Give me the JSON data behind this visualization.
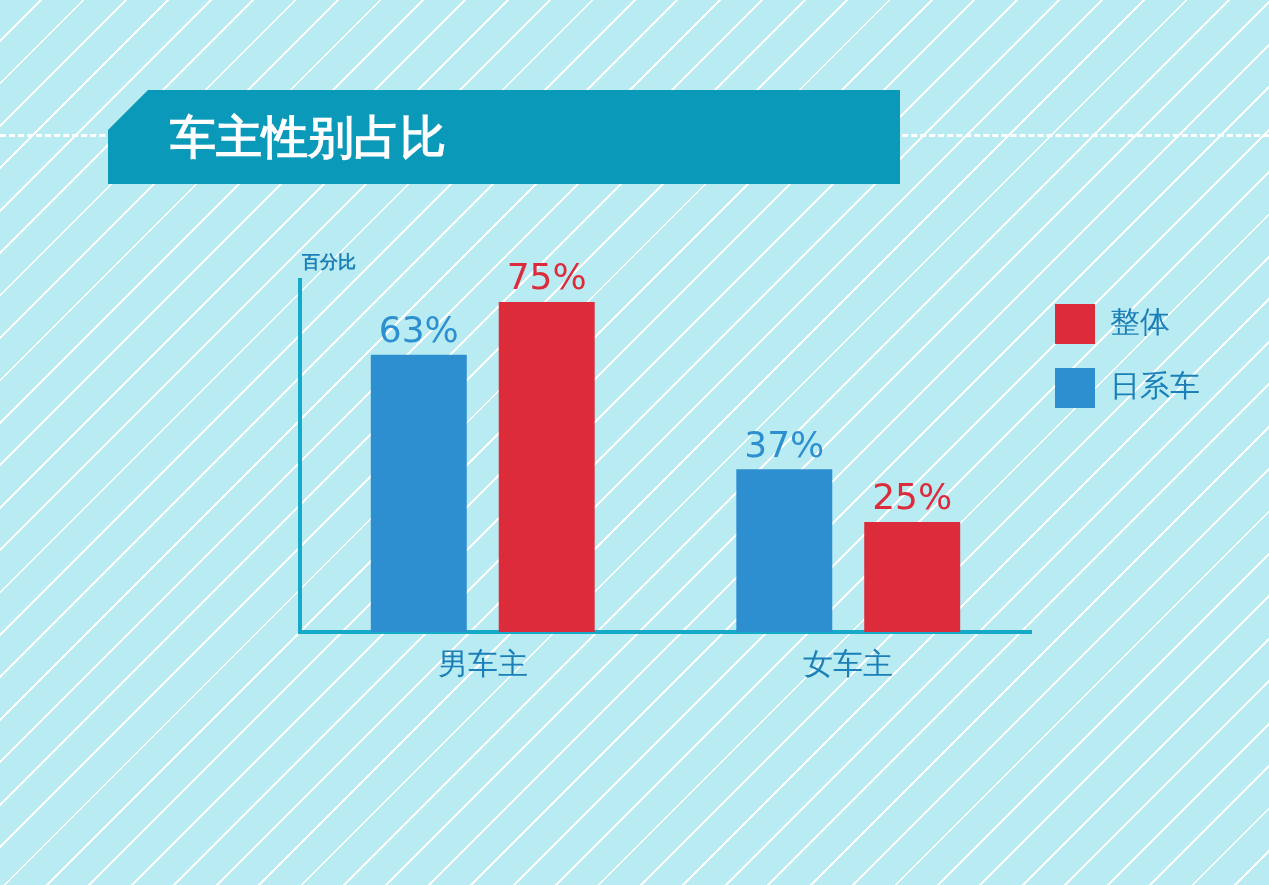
{
  "chart_data": {
    "type": "bar",
    "title": "车主性别占比",
    "ylabel": "百分比",
    "categories": [
      "男车主",
      "女车主"
    ],
    "series": [
      {
        "name": "日系车",
        "color": "#2e8fd0",
        "values": [
          63,
          37
        ],
        "value_labels": [
          "63%",
          "37%"
        ]
      },
      {
        "name": "整体",
        "color": "#dc2b3b",
        "values": [
          75,
          25
        ],
        "value_labels": [
          "75%",
          "25%"
        ]
      }
    ],
    "legend": "top right",
    "grid": false
  }
}
